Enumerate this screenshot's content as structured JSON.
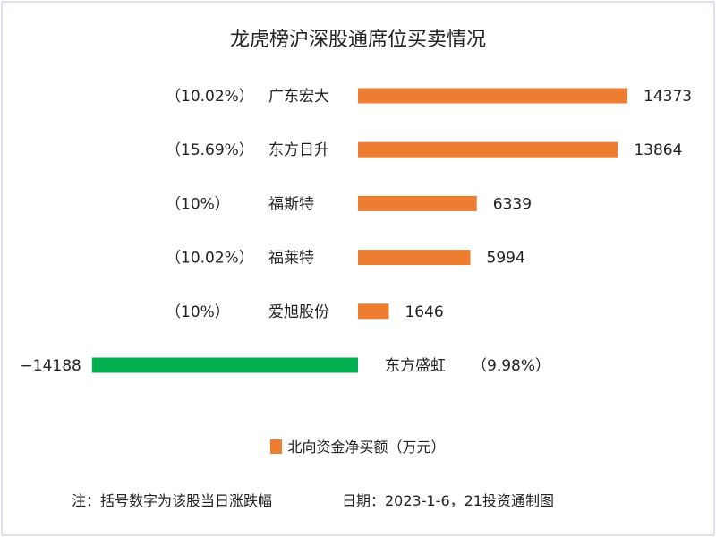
{
  "chart_data": {
    "type": "bar",
    "orientation": "horizontal",
    "title": "龙虎榜沪深股通席位买卖情况",
    "categories": [
      "广东宏大",
      "东方日升",
      "福斯特",
      "福莱特",
      "爱旭股份",
      "东方盛虹"
    ],
    "change_pct": [
      "（10.02%）",
      "（15.69%）",
      "（10%）",
      "（10.02%）",
      "（10%）",
      "（9.98%）"
    ],
    "series": [
      {
        "name": "北向资金净买额（万元）",
        "values": [
          14373,
          13864,
          6339,
          5994,
          1646,
          -14188
        ]
      }
    ],
    "colors": {
      "positive": "#ed7d31",
      "negative": "#00b050"
    },
    "legend_position": "bottom",
    "grid": false,
    "note": "注：括号数字为该股当日涨跌幅",
    "date": "日期：2023-1-6，21投资通制图"
  }
}
